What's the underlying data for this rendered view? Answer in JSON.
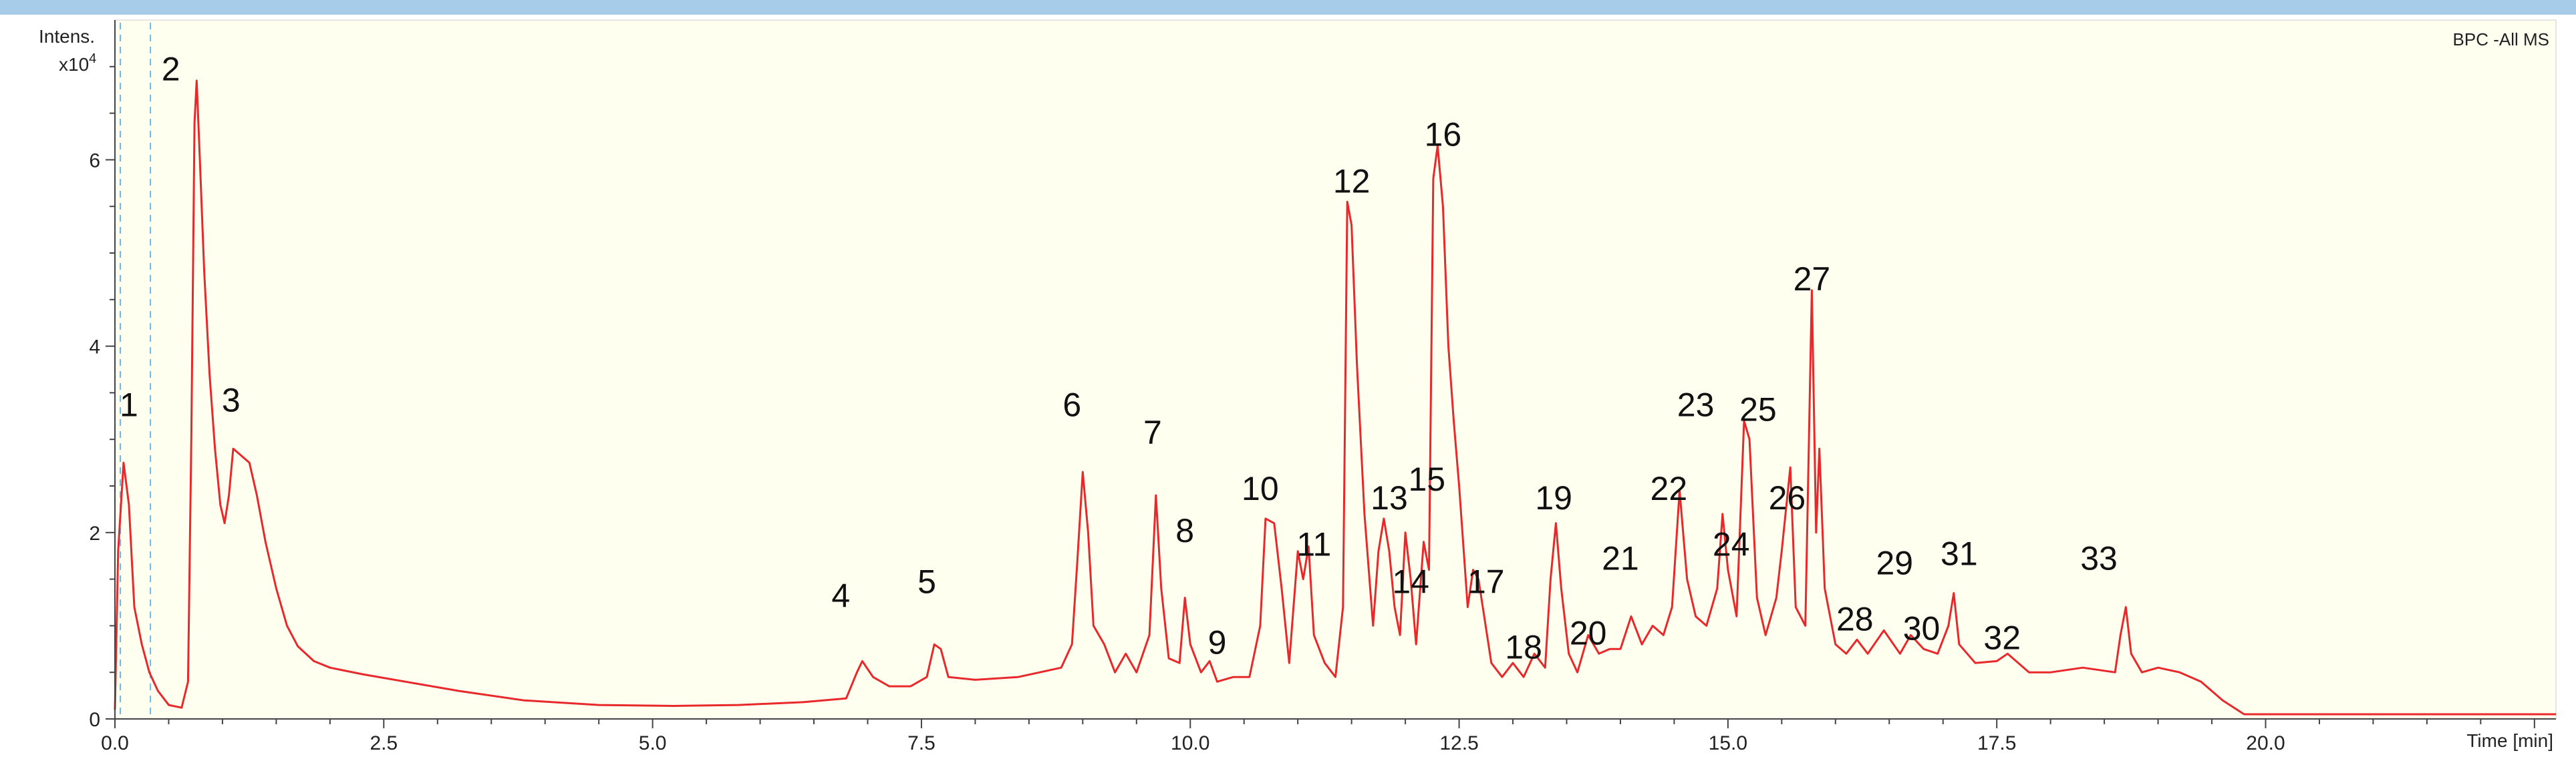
{
  "chart_data": {
    "type": "line",
    "trace_label": "BPC -All MS",
    "ylabel": "Intens.",
    "yunit_prefix": "x10",
    "yunit_exp": "4",
    "xlabel": "Time [min]",
    "xlim": [
      0,
      22.7
    ],
    "ylim": [
      0,
      7.5
    ],
    "x_ticks": [
      0.0,
      2.5,
      5.0,
      7.5,
      10.0,
      12.5,
      15.0,
      17.5,
      20.0
    ],
    "x_tick_labels": [
      "0.0",
      "2.5",
      "5.0",
      "7.5",
      "10.0",
      "12.5",
      "15.0",
      "17.5",
      "20.0"
    ],
    "y_ticks": [
      0,
      2,
      4,
      6
    ],
    "y_tick_labels": [
      "0",
      "2",
      "4",
      "6"
    ],
    "line_color": "#e8282a",
    "markers": [
      0.05,
      0.33
    ],
    "series": [
      {
        "values": [
          [
            0.0,
            0.1
          ],
          [
            0.03,
            1.8
          ],
          [
            0.08,
            2.75
          ],
          [
            0.13,
            2.3
          ],
          [
            0.18,
            1.2
          ],
          [
            0.25,
            0.8
          ],
          [
            0.32,
            0.5
          ],
          [
            0.4,
            0.3
          ],
          [
            0.5,
            0.15
          ],
          [
            0.62,
            0.12
          ],
          [
            0.68,
            0.4
          ],
          [
            0.71,
            3.0
          ],
          [
            0.74,
            6.4
          ],
          [
            0.76,
            6.85
          ],
          [
            0.79,
            6.0
          ],
          [
            0.83,
            4.8
          ],
          [
            0.88,
            3.7
          ],
          [
            0.93,
            2.9
          ],
          [
            0.98,
            2.3
          ],
          [
            1.02,
            2.1
          ],
          [
            1.06,
            2.4
          ],
          [
            1.1,
            2.9
          ],
          [
            1.15,
            2.85
          ],
          [
            1.2,
            2.8
          ],
          [
            1.25,
            2.75
          ],
          [
            1.32,
            2.4
          ],
          [
            1.4,
            1.9
          ],
          [
            1.5,
            1.4
          ],
          [
            1.6,
            1.0
          ],
          [
            1.7,
            0.78
          ],
          [
            1.85,
            0.62
          ],
          [
            2.0,
            0.55
          ],
          [
            2.3,
            0.48
          ],
          [
            2.7,
            0.4
          ],
          [
            3.2,
            0.3
          ],
          [
            3.8,
            0.2
          ],
          [
            4.5,
            0.15
          ],
          [
            5.2,
            0.14
          ],
          [
            5.8,
            0.15
          ],
          [
            6.4,
            0.18
          ],
          [
            6.8,
            0.22
          ],
          [
            6.9,
            0.5
          ],
          [
            6.95,
            0.62
          ],
          [
            7.05,
            0.45
          ],
          [
            7.2,
            0.35
          ],
          [
            7.4,
            0.35
          ],
          [
            7.55,
            0.45
          ],
          [
            7.62,
            0.8
          ],
          [
            7.68,
            0.75
          ],
          [
            7.75,
            0.45
          ],
          [
            8.0,
            0.42
          ],
          [
            8.4,
            0.45
          ],
          [
            8.8,
            0.55
          ],
          [
            8.9,
            0.8
          ],
          [
            8.95,
            1.7
          ],
          [
            9.0,
            2.65
          ],
          [
            9.05,
            2.0
          ],
          [
            9.1,
            1.0
          ],
          [
            9.2,
            0.8
          ],
          [
            9.3,
            0.5
          ],
          [
            9.4,
            0.7
          ],
          [
            9.5,
            0.5
          ],
          [
            9.62,
            0.9
          ],
          [
            9.68,
            2.4
          ],
          [
            9.73,
            1.4
          ],
          [
            9.8,
            0.65
          ],
          [
            9.9,
            0.6
          ],
          [
            9.95,
            1.3
          ],
          [
            10.0,
            0.8
          ],
          [
            10.1,
            0.5
          ],
          [
            10.18,
            0.62
          ],
          [
            10.25,
            0.4
          ],
          [
            10.4,
            0.45
          ],
          [
            10.55,
            0.45
          ],
          [
            10.65,
            1.0
          ],
          [
            10.7,
            2.15
          ],
          [
            10.78,
            2.1
          ],
          [
            10.85,
            1.4
          ],
          [
            10.92,
            0.6
          ],
          [
            11.0,
            1.8
          ],
          [
            11.05,
            1.5
          ],
          [
            11.1,
            1.85
          ],
          [
            11.15,
            0.9
          ],
          [
            11.25,
            0.6
          ],
          [
            11.35,
            0.45
          ],
          [
            11.42,
            1.2
          ],
          [
            11.46,
            5.55
          ],
          [
            11.5,
            5.3
          ],
          [
            11.55,
            3.8
          ],
          [
            11.62,
            2.2
          ],
          [
            11.7,
            1.0
          ],
          [
            11.75,
            1.8
          ],
          [
            11.8,
            2.15
          ],
          [
            11.85,
            1.8
          ],
          [
            11.9,
            1.2
          ],
          [
            11.95,
            0.9
          ],
          [
            12.0,
            2.0
          ],
          [
            12.05,
            1.5
          ],
          [
            12.1,
            0.8
          ],
          [
            12.17,
            1.9
          ],
          [
            12.22,
            1.6
          ],
          [
            12.26,
            5.8
          ],
          [
            12.3,
            6.15
          ],
          [
            12.35,
            5.5
          ],
          [
            12.4,
            4.0
          ],
          [
            12.45,
            3.2
          ],
          [
            12.5,
            2.5
          ],
          [
            12.58,
            1.2
          ],
          [
            12.63,
            1.6
          ],
          [
            12.68,
            1.5
          ],
          [
            12.72,
            1.2
          ],
          [
            12.8,
            0.6
          ],
          [
            12.9,
            0.45
          ],
          [
            13.0,
            0.6
          ],
          [
            13.1,
            0.45
          ],
          [
            13.2,
            0.7
          ],
          [
            13.3,
            0.55
          ],
          [
            13.35,
            1.5
          ],
          [
            13.4,
            2.1
          ],
          [
            13.45,
            1.4
          ],
          [
            13.52,
            0.7
          ],
          [
            13.6,
            0.5
          ],
          [
            13.7,
            0.9
          ],
          [
            13.8,
            0.7
          ],
          [
            13.9,
            0.75
          ],
          [
            14.0,
            0.75
          ],
          [
            14.1,
            1.1
          ],
          [
            14.2,
            0.8
          ],
          [
            14.3,
            1.0
          ],
          [
            14.4,
            0.9
          ],
          [
            14.48,
            1.2
          ],
          [
            14.55,
            2.45
          ],
          [
            14.62,
            1.5
          ],
          [
            14.7,
            1.1
          ],
          [
            14.8,
            1.0
          ],
          [
            14.9,
            1.4
          ],
          [
            14.95,
            2.2
          ],
          [
            15.0,
            1.6
          ],
          [
            15.08,
            1.1
          ],
          [
            15.15,
            3.2
          ],
          [
            15.2,
            3.0
          ],
          [
            15.27,
            1.3
          ],
          [
            15.35,
            0.9
          ],
          [
            15.45,
            1.3
          ],
          [
            15.5,
            1.8
          ],
          [
            15.58,
            2.7
          ],
          [
            15.63,
            1.2
          ],
          [
            15.72,
            1.0
          ],
          [
            15.78,
            4.6
          ],
          [
            15.82,
            2.0
          ],
          [
            15.85,
            2.9
          ],
          [
            15.9,
            1.4
          ],
          [
            16.0,
            0.8
          ],
          [
            16.1,
            0.7
          ],
          [
            16.2,
            0.85
          ],
          [
            16.3,
            0.7
          ],
          [
            16.45,
            0.95
          ],
          [
            16.6,
            0.7
          ],
          [
            16.7,
            0.9
          ],
          [
            16.82,
            0.75
          ],
          [
            16.95,
            0.7
          ],
          [
            17.05,
            1.0
          ],
          [
            17.1,
            1.35
          ],
          [
            17.15,
            0.8
          ],
          [
            17.3,
            0.6
          ],
          [
            17.5,
            0.62
          ],
          [
            17.6,
            0.7
          ],
          [
            17.8,
            0.5
          ],
          [
            18.0,
            0.5
          ],
          [
            18.3,
            0.55
          ],
          [
            18.6,
            0.5
          ],
          [
            18.65,
            0.9
          ],
          [
            18.7,
            1.2
          ],
          [
            18.75,
            0.7
          ],
          [
            18.85,
            0.5
          ],
          [
            19.0,
            0.55
          ],
          [
            19.2,
            0.5
          ],
          [
            19.4,
            0.4
          ],
          [
            19.6,
            0.2
          ],
          [
            19.8,
            0.05
          ],
          [
            20.0,
            0.05
          ],
          [
            22.7,
            0.05
          ]
        ]
      }
    ],
    "peaks": [
      {
        "label": "1",
        "x": 0.13,
        "y": 3.25
      },
      {
        "label": "2",
        "x": 0.52,
        "y": 6.85
      },
      {
        "label": "3",
        "x": 1.08,
        "y": 3.3
      },
      {
        "label": "4",
        "x": 6.75,
        "y": 1.2
      },
      {
        "label": "5",
        "x": 7.55,
        "y": 1.35
      },
      {
        "label": "6",
        "x": 8.9,
        "y": 3.25
      },
      {
        "label": "7",
        "x": 9.65,
        "y": 2.95
      },
      {
        "label": "8",
        "x": 9.95,
        "y": 1.9
      },
      {
        "label": "9",
        "x": 10.25,
        "y": 0.7
      },
      {
        "label": "10",
        "x": 10.65,
        "y": 2.35
      },
      {
        "label": "11",
        "x": 11.15,
        "y": 1.75
      },
      {
        "label": "12",
        "x": 11.5,
        "y": 5.65
      },
      {
        "label": "13",
        "x": 11.85,
        "y": 2.25
      },
      {
        "label": "14",
        "x": 12.05,
        "y": 1.35
      },
      {
        "label": "15",
        "x": 12.2,
        "y": 2.45
      },
      {
        "label": "16",
        "x": 12.35,
        "y": 6.15
      },
      {
        "label": "17",
        "x": 12.75,
        "y": 1.35
      },
      {
        "label": "18",
        "x": 13.1,
        "y": 0.65
      },
      {
        "label": "19",
        "x": 13.38,
        "y": 2.25
      },
      {
        "label": "20",
        "x": 13.7,
        "y": 0.8
      },
      {
        "label": "21",
        "x": 14.0,
        "y": 1.6
      },
      {
        "label": "22",
        "x": 14.45,
        "y": 2.35
      },
      {
        "label": "23",
        "x": 14.7,
        "y": 3.25
      },
      {
        "label": "24",
        "x": 15.03,
        "y": 1.75
      },
      {
        "label": "25",
        "x": 15.28,
        "y": 3.2
      },
      {
        "label": "26",
        "x": 15.55,
        "y": 2.25
      },
      {
        "label": "27",
        "x": 15.78,
        "y": 4.6
      },
      {
        "label": "28",
        "x": 16.18,
        "y": 0.95
      },
      {
        "label": "29",
        "x": 16.55,
        "y": 1.55
      },
      {
        "label": "30",
        "x": 16.8,
        "y": 0.85
      },
      {
        "label": "31",
        "x": 17.15,
        "y": 1.65
      },
      {
        "label": "32",
        "x": 17.55,
        "y": 0.75
      },
      {
        "label": "33",
        "x": 18.45,
        "y": 1.6
      }
    ]
  }
}
